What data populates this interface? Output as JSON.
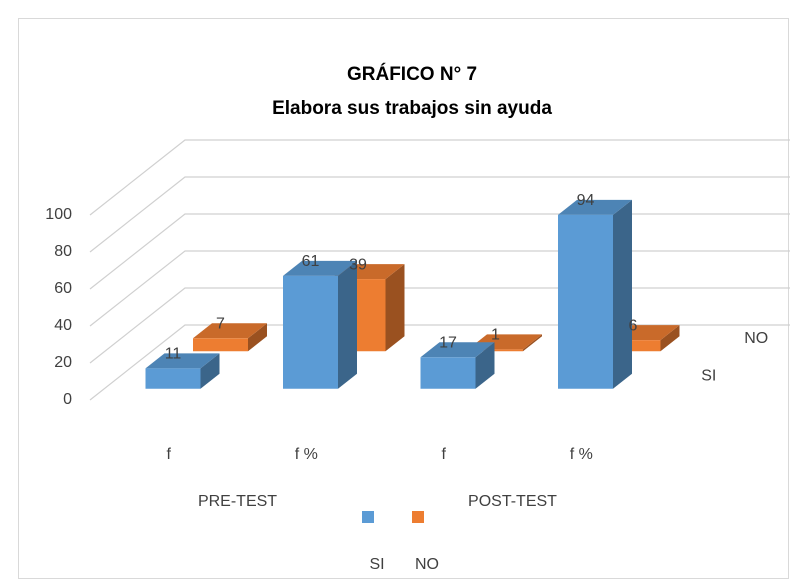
{
  "chart_data": {
    "type": "bar3d",
    "title": "GRÁFICO N° 7",
    "subtitle": "Elabora sus trabajos sin ayuda",
    "categories": [
      "f",
      "f %",
      "f",
      "f %"
    ],
    "groups": [
      "PRE-TEST",
      "POST-TEST"
    ],
    "series": [
      {
        "name": "SI",
        "color": "#5b9bd5",
        "values": [
          11,
          61,
          17,
          94
        ]
      },
      {
        "name": "NO",
        "color": "#ed7d31",
        "values": [
          7,
          39,
          1,
          6
        ]
      }
    ],
    "ylim": [
      0,
      100
    ],
    "yticks": [
      0,
      20,
      40,
      60,
      80,
      100
    ],
    "grid": true
  }
}
